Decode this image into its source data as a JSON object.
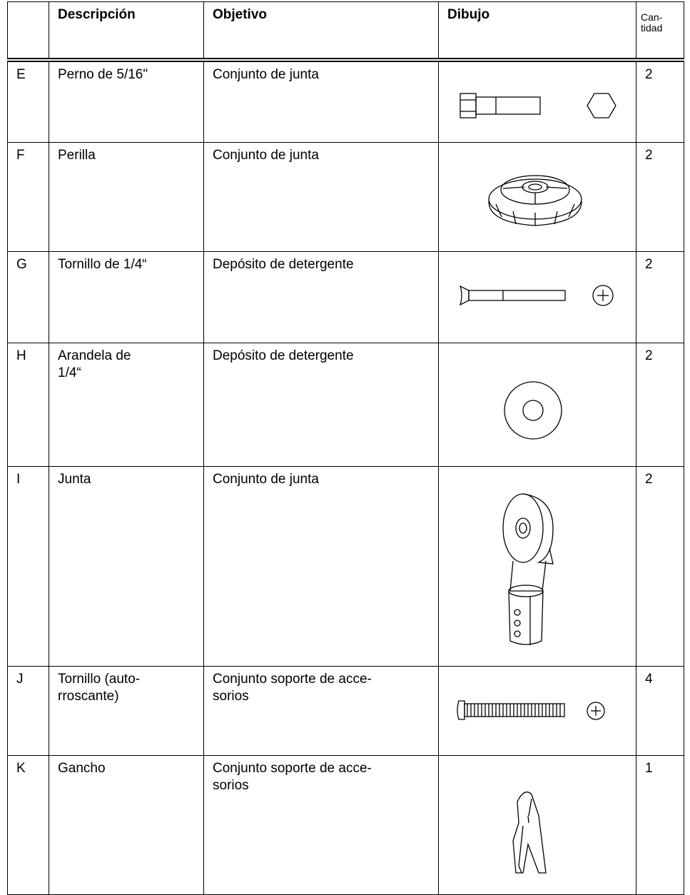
{
  "header": [
    "",
    "Descripción",
    "Objetivo",
    "Dibujo",
    "Can-\ntidad"
  ],
  "rows": [
    [
      "E",
      "Perno de 5/16\"",
      "Conjunto de junta",
      "2"
    ],
    [
      "F",
      "Perilla",
      "Conjunto de junta",
      "2"
    ],
    [
      "G",
      "Tornillo de 1/4“",
      "Depósito de detergente",
      "2"
    ],
    [
      "H",
      "Arandela de\n1/4“",
      "Depósito de detergente",
      "2"
    ],
    [
      "I",
      "Junta",
      "Conjunto de junta",
      "2"
    ],
    [
      "J",
      "Tornillo (auto-\nrroscante)",
      "Conjunto soporte de acce-\nsorios",
      "4"
    ],
    [
      "K",
      "Gancho",
      "Conjunto soporte de acce-\nsorios",
      "1"
    ]
  ]
}
